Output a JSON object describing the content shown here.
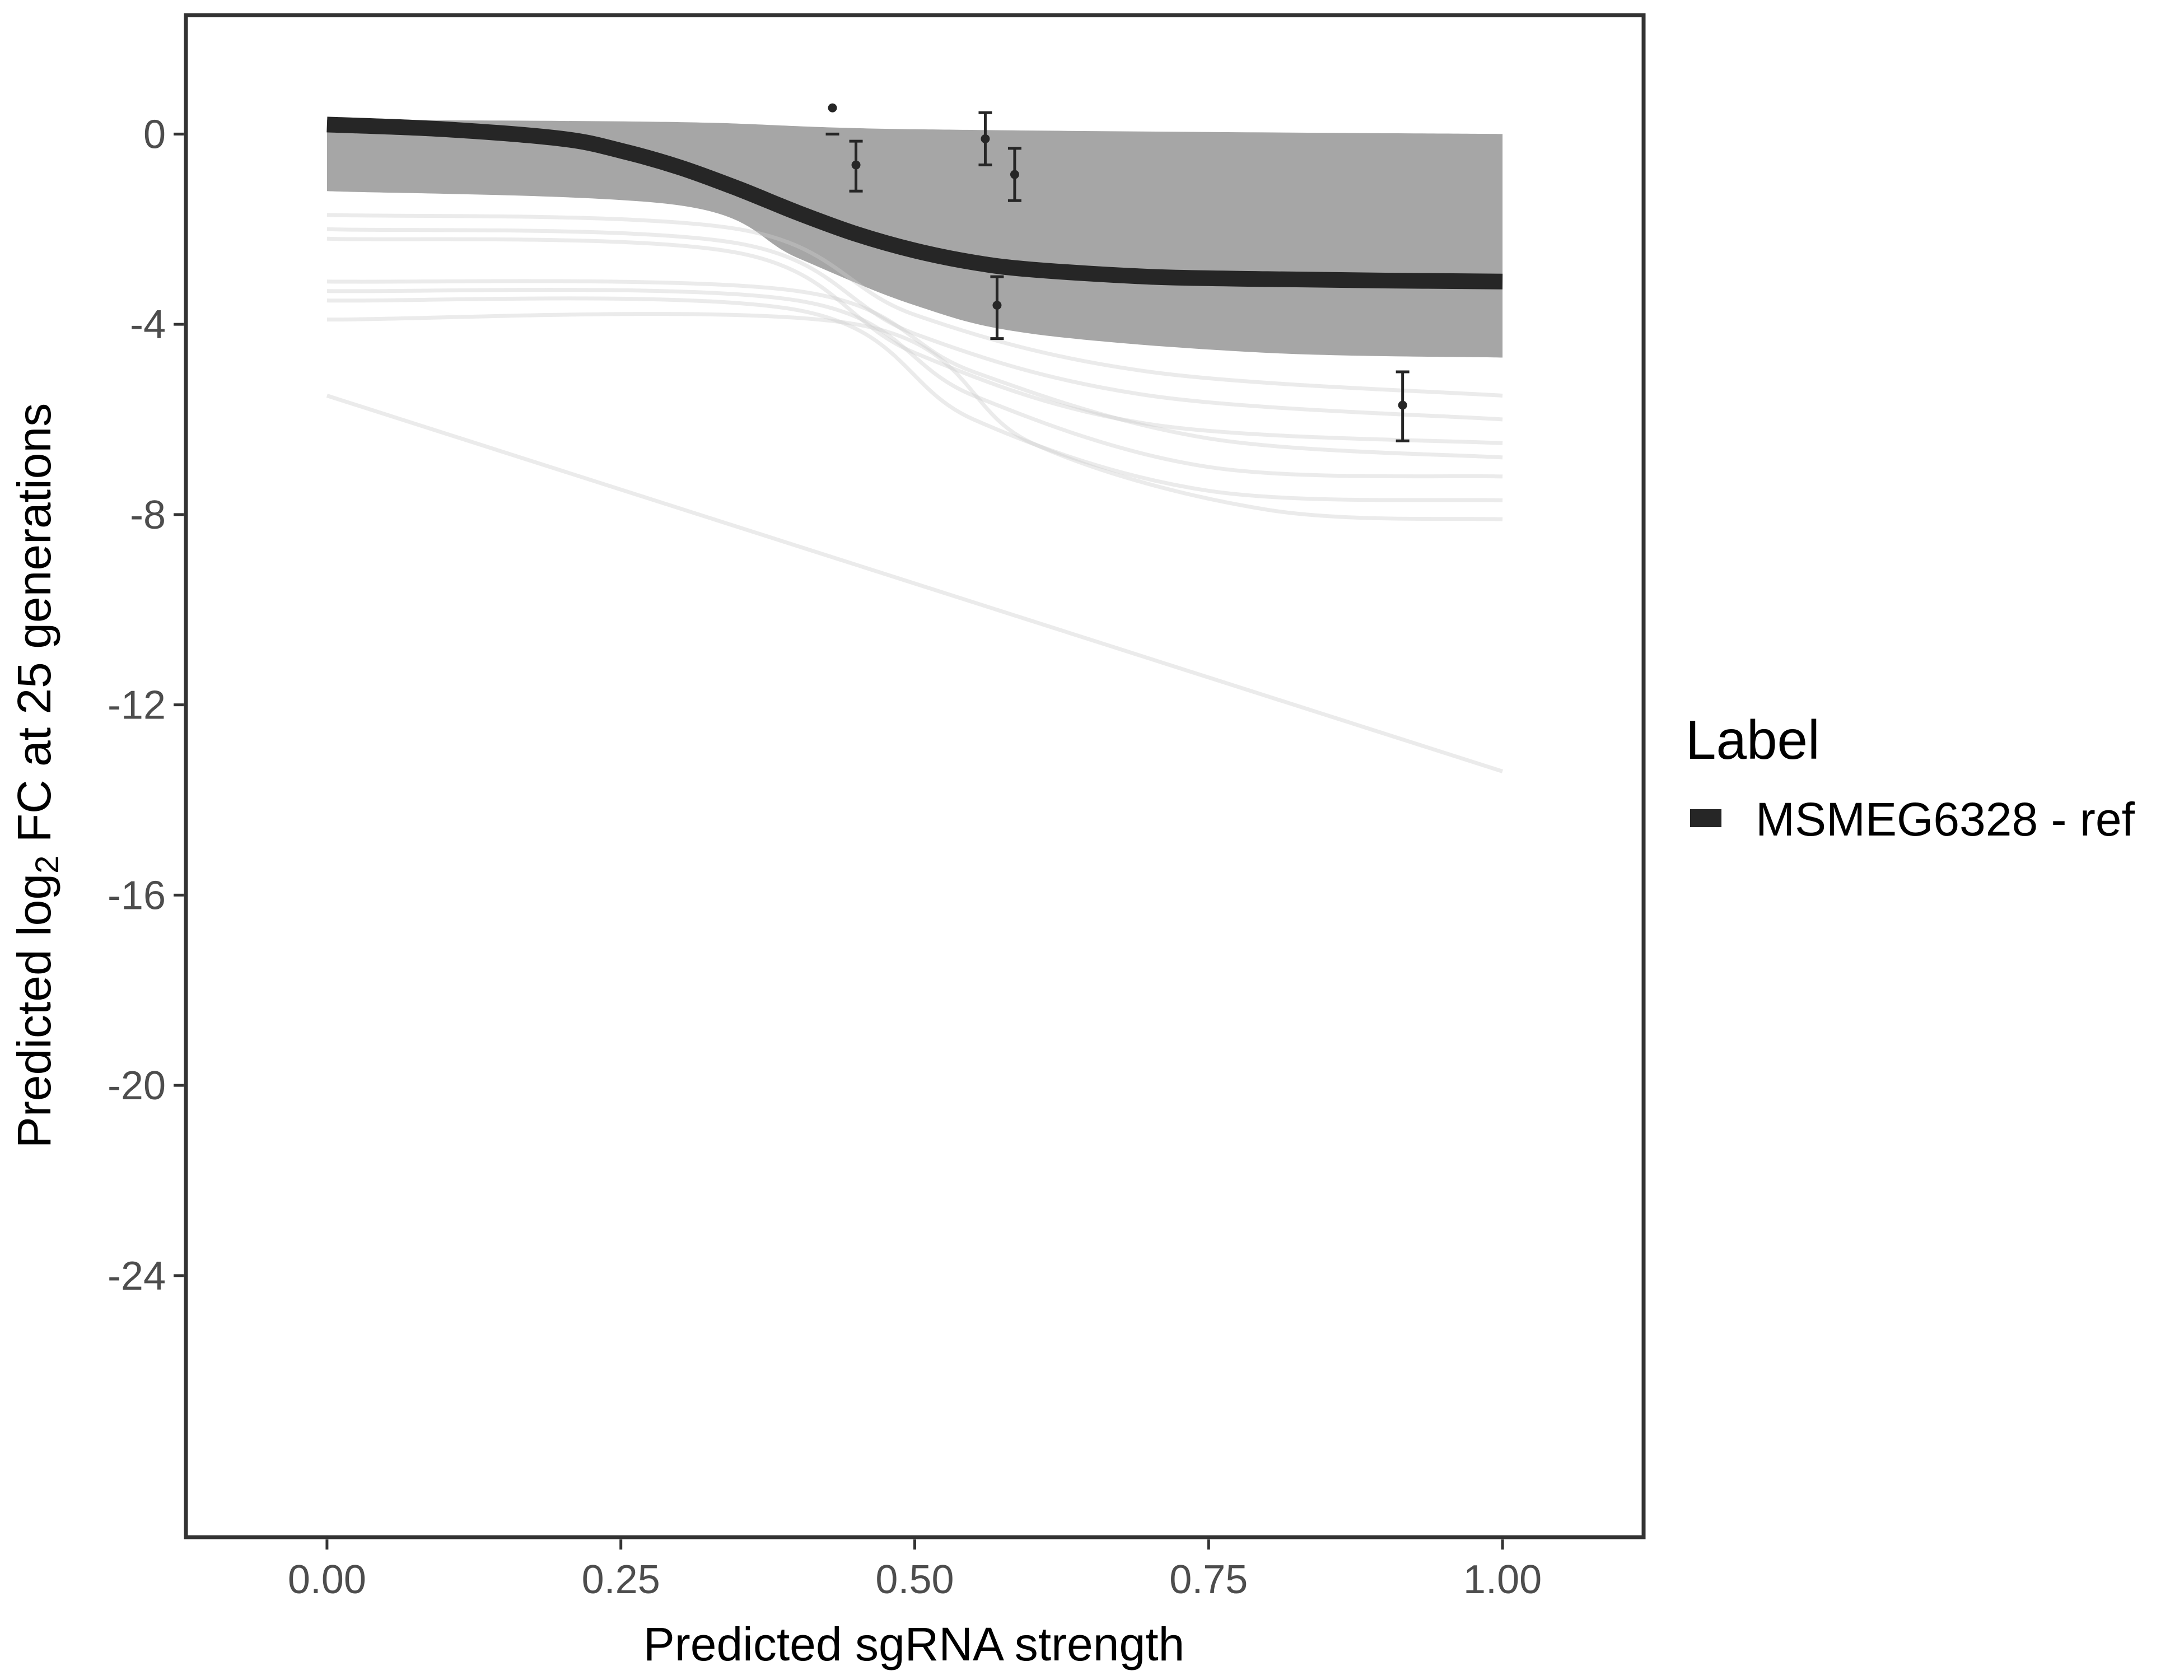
{
  "chart_data": {
    "type": "line",
    "xlabel": "Predicted sgRNA strength",
    "ylabel_parts": [
      "Predicted  log",
      "2",
      " FC at 25 generations"
    ],
    "xlim": [
      -0.12,
      1.12
    ],
    "ylim": [
      -29.5,
      2.5
    ],
    "x_ticks": [
      0,
      0.25,
      0.5,
      0.75,
      1
    ],
    "x_tick_labels": [
      "0.00",
      "0.25",
      "0.50",
      "0.75",
      "1.00"
    ],
    "y_ticks": [
      0,
      -4,
      -8,
      -12,
      -16,
      -20,
      -24
    ],
    "y_tick_labels": [
      "0",
      "-4",
      "-8",
      "-12",
      "-16",
      "-20",
      "-24"
    ],
    "grid": false,
    "legend": {
      "title": "Label",
      "position": "right",
      "entries": [
        {
          "name": "MSMEG6328 - ref",
          "color": "#262626"
        }
      ]
    },
    "series": [
      {
        "name": "MSMEG6328 - ref",
        "role": "fit",
        "color": "#262626",
        "x": [
          0.0,
          0.1,
          0.2,
          0.25,
          0.3,
          0.35,
          0.4,
          0.45,
          0.5,
          0.55,
          0.6,
          0.7,
          0.8,
          0.9,
          1.0
        ],
        "y": [
          0.2,
          0.1,
          -0.1,
          -0.35,
          -0.7,
          -1.15,
          -1.65,
          -2.1,
          -2.45,
          -2.7,
          -2.85,
          -3.0,
          -3.05,
          -3.08,
          -3.1
        ]
      }
    ],
    "posterior_band": {
      "color": "#a6a6a6",
      "upper": {
        "x": [
          0.0,
          0.3,
          0.5,
          1.0
        ],
        "y": [
          0.3,
          0.25,
          0.1,
          0.0
        ]
      },
      "lower": {
        "x": [
          0.0,
          0.3,
          0.4,
          0.5,
          0.6,
          0.8,
          1.0
        ],
        "y": [
          -1.2,
          -1.5,
          -2.6,
          -3.6,
          -4.2,
          -4.6,
          -4.7
        ]
      },
      "sparse_lines": [
        {
          "x": [
            0.0,
            0.35,
            0.5,
            0.7,
            1.0
          ],
          "y": [
            -1.7,
            -2.0,
            -3.8,
            -5.0,
            -5.5
          ]
        },
        {
          "x": [
            0.0,
            0.35,
            0.5,
            0.7,
            1.0
          ],
          "y": [
            -2.0,
            -2.3,
            -4.2,
            -5.5,
            -6.0
          ]
        },
        {
          "x": [
            0.0,
            0.35,
            0.5,
            0.7,
            1.0
          ],
          "y": [
            -2.2,
            -2.5,
            -4.6,
            -6.1,
            -6.5
          ]
        },
        {
          "x": [
            0.0,
            0.4,
            0.55,
            0.75,
            1.0
          ],
          "y": [
            -3.1,
            -3.3,
            -5.0,
            -6.4,
            -6.8
          ]
        },
        {
          "x": [
            0.0,
            0.4,
            0.55,
            0.75,
            1.0
          ],
          "y": [
            -3.3,
            -3.5,
            -5.5,
            -7.0,
            -7.2
          ]
        },
        {
          "x": [
            0.0,
            0.4,
            0.55,
            0.75,
            1.0
          ],
          "y": [
            -3.5,
            -3.7,
            -6.0,
            -7.5,
            -7.7
          ]
        },
        {
          "x": [
            0.0,
            0.45,
            0.6,
            0.8,
            1.0
          ],
          "y": [
            -3.9,
            -4.0,
            -6.5,
            -7.9,
            -8.1
          ]
        },
        {
          "x": [
            0.0,
            1.0
          ],
          "y": [
            -5.5,
            -13.4
          ]
        }
      ]
    },
    "points": [
      {
        "x": 0.43,
        "y": 0.55,
        "ymin": null,
        "ymax": null
      },
      {
        "x": 0.43,
        "y": null,
        "ymin": 0.0,
        "ymax": null
      },
      {
        "x": 0.45,
        "y": -0.65,
        "ymin": -1.2,
        "ymax": -0.15
      },
      {
        "x": 0.56,
        "y": -0.1,
        "ymin": -0.65,
        "ymax": 0.45
      },
      {
        "x": 0.585,
        "y": -0.85,
        "ymin": -1.4,
        "ymax": -0.3
      },
      {
        "x": 0.57,
        "y": -3.6,
        "ymin": -4.3,
        "ymax": -3.0
      },
      {
        "x": 0.915,
        "y": -5.7,
        "ymin": -6.45,
        "ymax": -5.0
      }
    ]
  }
}
